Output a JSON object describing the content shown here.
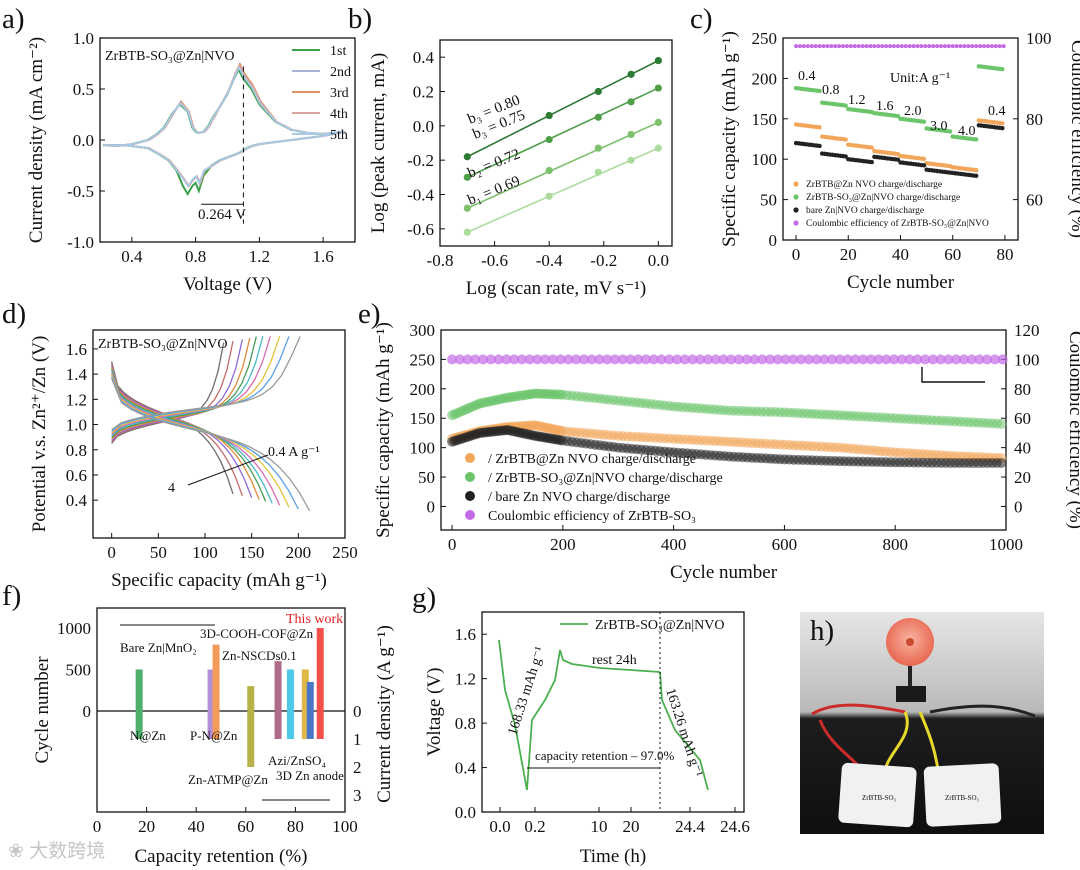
{
  "chart_data": [
    {
      "panel": "a)",
      "type": "line",
      "inset_title": "ZrBTB-SO₃@Zn|NVO",
      "xlabel": "Voltage (V)",
      "ylabel": "Current density (mA cm⁻²)",
      "xlim": [
        0.2,
        1.8
      ],
      "ylim": [
        -1.0,
        1.0
      ],
      "xticks": [
        0.4,
        0.8,
        1.2,
        1.6
      ],
      "yticks": [
        -1.0,
        -0.5,
        0.0,
        0.5,
        1.0
      ],
      "annotation": "0.264 V",
      "series": [
        {
          "name": "1st",
          "color": "#3aa04a"
        },
        {
          "name": "2nd",
          "color": "#a8b4d8"
        },
        {
          "name": "3rd",
          "color": "#e4906a"
        },
        {
          "name": "4th",
          "color": "#d9a3a0"
        },
        {
          "name": "5th",
          "color": "#a8c9e8"
        }
      ],
      "curve": {
        "x": [
          0.22,
          0.35,
          0.5,
          0.58,
          0.63,
          0.68,
          0.72,
          0.75,
          0.78,
          0.8,
          0.82,
          0.85,
          0.9,
          0.95,
          1.0,
          1.05,
          1.08,
          1.1,
          1.12,
          1.15,
          1.2,
          1.3,
          1.4,
          1.5,
          1.6,
          1.7,
          1.73,
          1.6,
          1.5,
          1.4,
          1.3,
          1.2,
          1.15,
          1.1,
          1.07,
          1.04,
          1.0,
          0.95,
          0.92,
          0.9,
          0.88,
          0.85,
          0.82,
          0.8,
          0.78,
          0.75,
          0.7,
          0.65,
          0.6,
          0.55,
          0.5,
          0.4,
          0.3,
          0.22
        ],
        "y": [
          -0.05,
          -0.05,
          -0.08,
          -0.15,
          -0.2,
          -0.3,
          -0.45,
          -0.53,
          -0.45,
          -0.42,
          -0.5,
          -0.35,
          -0.25,
          -0.2,
          -0.17,
          -0.14,
          -0.12,
          -0.1,
          -0.08,
          -0.06,
          -0.04,
          -0.02,
          0.0,
          0.02,
          0.04,
          0.07,
          0.08,
          0.06,
          0.07,
          0.1,
          0.18,
          0.35,
          0.5,
          0.6,
          0.69,
          0.6,
          0.45,
          0.32,
          0.25,
          0.2,
          0.14,
          0.08,
          0.07,
          0.08,
          0.12,
          0.28,
          0.35,
          0.25,
          0.12,
          0.05,
          0.0,
          -0.04,
          -0.06,
          -0.05
        ]
      }
    },
    {
      "panel": "b)",
      "type": "scatter",
      "xlabel": "Log (scan rate, mV s⁻¹)",
      "ylabel": "Log (peak current, mA)",
      "xlim": [
        -0.8,
        0.05
      ],
      "ylim": [
        -0.7,
        0.5
      ],
      "xticks": [
        -0.8,
        -0.6,
        -0.4,
        -0.2,
        0.0
      ],
      "yticks": [
        -0.6,
        -0.4,
        -0.2,
        0.0,
        0.2,
        0.4
      ],
      "x": [
        -0.7,
        -0.4,
        -0.22,
        -0.1,
        0.0
      ],
      "series": [
        {
          "name": "b₃ = 0.80",
          "color": "#2d7a34",
          "values": [
            -0.18,
            0.06,
            0.2,
            0.3,
            0.38
          ]
        },
        {
          "name": "b₃ = 0.75",
          "color": "#4f9e48",
          "values": [
            -0.3,
            -0.08,
            0.05,
            0.14,
            0.22
          ]
        },
        {
          "name": "b₂ = 0.72",
          "color": "#7cc06c",
          "values": [
            -0.48,
            -0.26,
            -0.13,
            -0.05,
            0.02
          ]
        },
        {
          "name": "b₁ = 0.69",
          "color": "#aedc9e",
          "values": [
            -0.62,
            -0.41,
            -0.27,
            -0.2,
            -0.13
          ]
        }
      ]
    },
    {
      "panel": "c)",
      "type": "scatter",
      "xlabel": "Cycle number",
      "ylabel": "Specific capacity (mAh g⁻¹)",
      "y2label": "Coulombic efficiency (%)",
      "xlim": [
        -5,
        85
      ],
      "ylim": [
        0,
        250
      ],
      "y2lim": [
        50,
        100
      ],
      "xticks": [
        0,
        20,
        40,
        60,
        80
      ],
      "yticks": [
        0,
        50,
        100,
        150,
        200,
        250
      ],
      "y2ticks": [
        60,
        80,
        100
      ],
      "unit_label": "Unit:A g⁻¹",
      "rate_labels": [
        "0.4",
        "0.8",
        "1.2",
        "1.6",
        "2.0",
        "3.0",
        "4.0",
        "0.4"
      ],
      "legend": [
        "ZrBTB@Zn NVO charge/discharge",
        "ZrBTB-SO₃@Zn|NVO charge/discharge",
        "bare Zn|NVO charge/discharge",
        "Coulombic efficiency of ZrBTB-SO₃@Zn|NVO"
      ],
      "step_values": {
        "ZrBTB-SO3@Zn|NVO": [
          188,
          170,
          162,
          157,
          150,
          138,
          128,
          215
        ],
        "ZrBTB@Zn NVO": [
          143,
          128,
          118,
          110,
          104,
          95,
          90,
          148
        ],
        "bare Zn|NVO": [
          120,
          107,
          100,
          103,
          96,
          87,
          83,
          142
        ]
      },
      "coulombic_efficiency": 98,
      "colors": {
        "orange": "#f2a65a",
        "green": "#6cc46b",
        "black": "#222222",
        "purple": "#c36be6"
      }
    },
    {
      "panel": "d)",
      "type": "line",
      "inset_title": "ZrBTB-SO₃@Zn|NVO",
      "xlabel": "Specific capacity (mAh g⁻¹)",
      "ylabel": "Potential v.s. Zn²⁺/Zn (V)",
      "xlim": [
        -20,
        250
      ],
      "ylim": [
        0.1,
        1.75
      ],
      "xticks": [
        0,
        50,
        100,
        150,
        200,
        250
      ],
      "yticks": [
        0.4,
        0.6,
        0.8,
        1.0,
        1.2,
        1.4,
        1.6
      ],
      "labels": [
        "0.4 A g⁻¹",
        "4"
      ],
      "discharge_capacities": [
        130,
        140,
        150,
        158,
        165,
        172,
        180,
        190,
        200,
        212
      ]
    },
    {
      "panel": "e)",
      "type": "scatter",
      "xlabel": "Cycle number",
      "ylabel": "Specific capacity (mAh g⁻¹)",
      "y2label": "Coulombic efficiency (%)",
      "xlim": [
        -20,
        1000
      ],
      "ylim": [
        -40,
        300
      ],
      "y2lim": [
        -16,
        120
      ],
      "xticks": [
        0,
        200,
        400,
        600,
        800,
        1000
      ],
      "yticks": [
        0,
        50,
        100,
        150,
        200,
        250,
        300
      ],
      "y2ticks": [
        0,
        20,
        40,
        60,
        80,
        100,
        120
      ],
      "legend": [
        "ZrBTB@Zn NVO charge/discharge",
        "ZrBTB-SO₃@Zn|NVO charge/discharge",
        "bare Zn NVO charge/discharge",
        "Coulombic efficiency of ZrBTB-SO₃"
      ],
      "x": [
        0,
        50,
        100,
        150,
        200,
        300,
        400,
        500,
        600,
        700,
        800,
        900,
        1000
      ],
      "series": [
        {
          "name": "ZrBTB-SO3@Zn|NVO",
          "color": "#6cc46b",
          "values": [
            155,
            175,
            185,
            192,
            190,
            180,
            170,
            163,
            160,
            155,
            150,
            145,
            140
          ]
        },
        {
          "name": "ZrBTB@Zn NVO",
          "color": "#f2a65a",
          "values": [
            115,
            128,
            135,
            138,
            128,
            120,
            115,
            110,
            105,
            100,
            92,
            86,
            82
          ]
        },
        {
          "name": "bare Zn NVO",
          "color": "#222222",
          "values": [
            110,
            125,
            130,
            120,
            112,
            100,
            92,
            85,
            80,
            77,
            75,
            74,
            74
          ]
        }
      ],
      "coulombic_efficiency": 100
    },
    {
      "panel": "f)",
      "type": "bar",
      "xlabel": "Capacity retention (%)",
      "ylabel": "Cycle number",
      "y2label": "Current density (A g⁻¹)",
      "xlim": [
        0,
        100
      ],
      "xticks": [
        0,
        20,
        40,
        60,
        80,
        100
      ],
      "yticks": [
        0,
        500,
        1000
      ],
      "y2ticks": [
        0,
        1,
        2,
        3
      ],
      "highlight": "This work",
      "labels": [
        "N@Zn",
        "Bare Zn|MnO₂",
        "P-N@Zn",
        "3D-COOH-COF@Zn",
        "Zn-NSCDs0.1",
        "Zn-ATMP@Zn",
        "Azi/ZnSO₄",
        "3D Zn anode"
      ],
      "bars": [
        {
          "retention": 17,
          "cycles": 500,
          "density": 1.0,
          "color": "#4caf6a"
        },
        {
          "retention": 46,
          "cycles": 500,
          "density": 1.0,
          "color": "#b48fd8"
        },
        {
          "retention": 48,
          "cycles": 800,
          "density": 1.0,
          "color": "#f29b5a"
        },
        {
          "retention": 62,
          "cycles": 300,
          "density": 2.0,
          "color": "#b8b24a"
        },
        {
          "retention": 73,
          "cycles": 600,
          "density": 1.0,
          "color": "#b06a8a"
        },
        {
          "retention": 78,
          "cycles": 500,
          "density": 1.0,
          "color": "#4dc9e8"
        },
        {
          "retention": 84,
          "cycles": 500,
          "density": 1.0,
          "color": "#e0b84a"
        },
        {
          "retention": 86,
          "cycles": 350,
          "density": 1.0,
          "color": "#4a78c8"
        },
        {
          "retention": 90,
          "cycles": 1000,
          "density": 1.0,
          "color": "#f2504a"
        }
      ]
    },
    {
      "panel": "g)",
      "type": "line",
      "inset_title": "ZrBTB-SO₃@Zn|NVO",
      "xlabel": "Time (h)",
      "ylabel": "Voltage (V)",
      "xticks": [
        "0.0",
        "0.2",
        "10",
        "20",
        "24.4",
        "24.6"
      ],
      "yticks": [
        0.0,
        0.4,
        0.8,
        1.2,
        1.6
      ],
      "labels": [
        "168.33 mAh g⁻¹",
        "rest 24h",
        "163.26 mAh g⁻¹",
        "capacity retention – 97.0%"
      ]
    },
    {
      "panel": "h)",
      "type": "photo",
      "labels": [
        "ZrBTB-SO₃",
        "ZrBTB-SO₃"
      ]
    }
  ],
  "watermark": "❀ 大数跨境"
}
